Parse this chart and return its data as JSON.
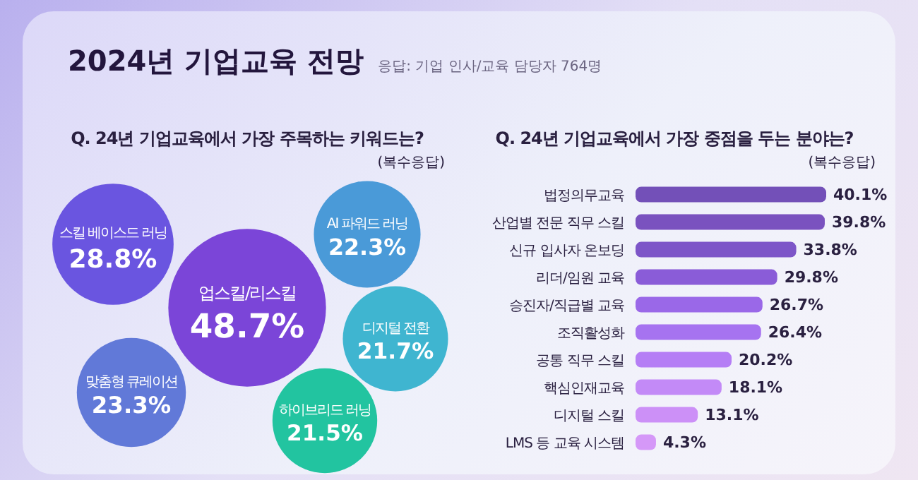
{
  "chart_data": [
    {
      "type": "other",
      "title": "2024년 기업교육 전망",
      "subtitle": "Q. 24년 기업교육에서 가장 주목하는 키워드는?",
      "annotations": [
        "응답: 기업 인사/교육 담당자 764명",
        "(복수응답)"
      ],
      "categories": [
        "업스킬/리스킬",
        "스킬 베이스드 러닝",
        "맞춤형 큐레이션",
        "AI 파워드 러닝",
        "디지털 전환",
        "하이브리드 러닝"
      ],
      "values": [
        48.7,
        28.8,
        23.3,
        22.3,
        21.7,
        21.5
      ],
      "value_labels": [
        "48.7%",
        "28.8%",
        "23.3%",
        "22.3%",
        "21.7%",
        "21.5%"
      ],
      "colors": [
        "#7b45d8",
        "#6a55e0",
        "#6179d8",
        "#4a9ad8",
        "#3fb5d0",
        "#22c4a0"
      ]
    },
    {
      "type": "bar",
      "orientation": "horizontal",
      "title": "Q. 24년 기업교육에서 가장 중점을 두는 분야는?",
      "annotations": [
        "(복수응답)"
      ],
      "categories": [
        "법정의무교육",
        "산업별 전문 직무 스킬",
        "신규 입사자 온보딩",
        "리더/임원 교육",
        "승진자/직급별 교육",
        "조직활성화",
        "공통 직무 스킬",
        "핵심인재교육",
        "디지털 스킬",
        "LMS 등 교육 시스템"
      ],
      "values": [
        40.1,
        39.8,
        33.8,
        29.8,
        26.7,
        26.4,
        20.2,
        18.1,
        13.1,
        4.3
      ],
      "value_labels": [
        "40.1%",
        "39.8%",
        "33.8%",
        "29.8%",
        "26.7%",
        "26.4%",
        "20.2%",
        "18.1%",
        "13.1%",
        "4.3%"
      ],
      "colors": [
        "#7350b8",
        "#7a52bf",
        "#7d55c8",
        "#8a5cd8",
        "#9a68e8",
        "#a673f0",
        "#b57ef5",
        "#c38af7",
        "#cc90f7",
        "#d598f8"
      ]
    }
  ]
}
